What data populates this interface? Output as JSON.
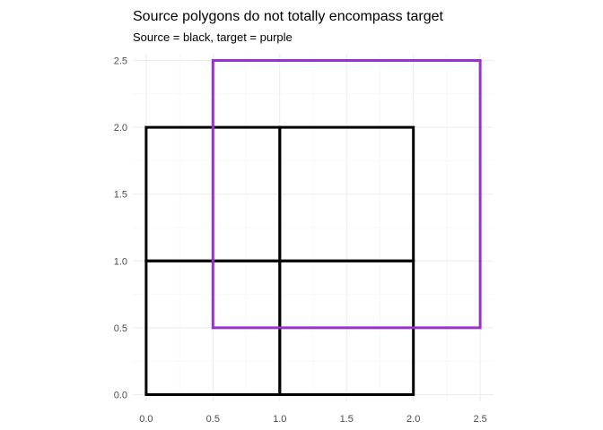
{
  "chart_data": {
    "type": "polygon",
    "title": "Source polygons do not totally encompass target",
    "subtitle": "Source = black, target = purple",
    "xlabel": "",
    "ylabel": "",
    "xlim": [
      -0.1,
      2.6
    ],
    "ylim": [
      -0.05,
      2.55
    ],
    "x_ticks": [
      0.0,
      0.5,
      1.0,
      1.5,
      2.0,
      2.5
    ],
    "x_tick_labels": [
      "0.0",
      "0.5",
      "1.0",
      "1.5",
      "2.0",
      "2.5"
    ],
    "y_ticks": [
      0.0,
      0.5,
      1.0,
      1.5,
      2.0,
      2.5
    ],
    "y_tick_labels": [
      "0.0",
      "0.5",
      "1.0",
      "1.5",
      "2.0",
      "2.5"
    ],
    "grid": true,
    "series": [
      {
        "role": "source",
        "color": "#000000",
        "polygons": [
          [
            [
              0,
              0
            ],
            [
              1,
              0
            ],
            [
              1,
              1
            ],
            [
              0,
              1
            ]
          ],
          [
            [
              1,
              0
            ],
            [
              2,
              0
            ],
            [
              2,
              1
            ],
            [
              1,
              1
            ]
          ],
          [
            [
              0,
              1
            ],
            [
              1,
              1
            ],
            [
              1,
              2
            ],
            [
              0,
              2
            ]
          ],
          [
            [
              1,
              1
            ],
            [
              2,
              1
            ],
            [
              2,
              2
            ],
            [
              1,
              2
            ]
          ]
        ]
      },
      {
        "role": "target",
        "color": "#9932cc",
        "polygons": [
          [
            [
              0.5,
              0.5
            ],
            [
              2.5,
              0.5
            ],
            [
              2.5,
              2.5
            ],
            [
              0.5,
              2.5
            ]
          ]
        ]
      }
    ]
  }
}
